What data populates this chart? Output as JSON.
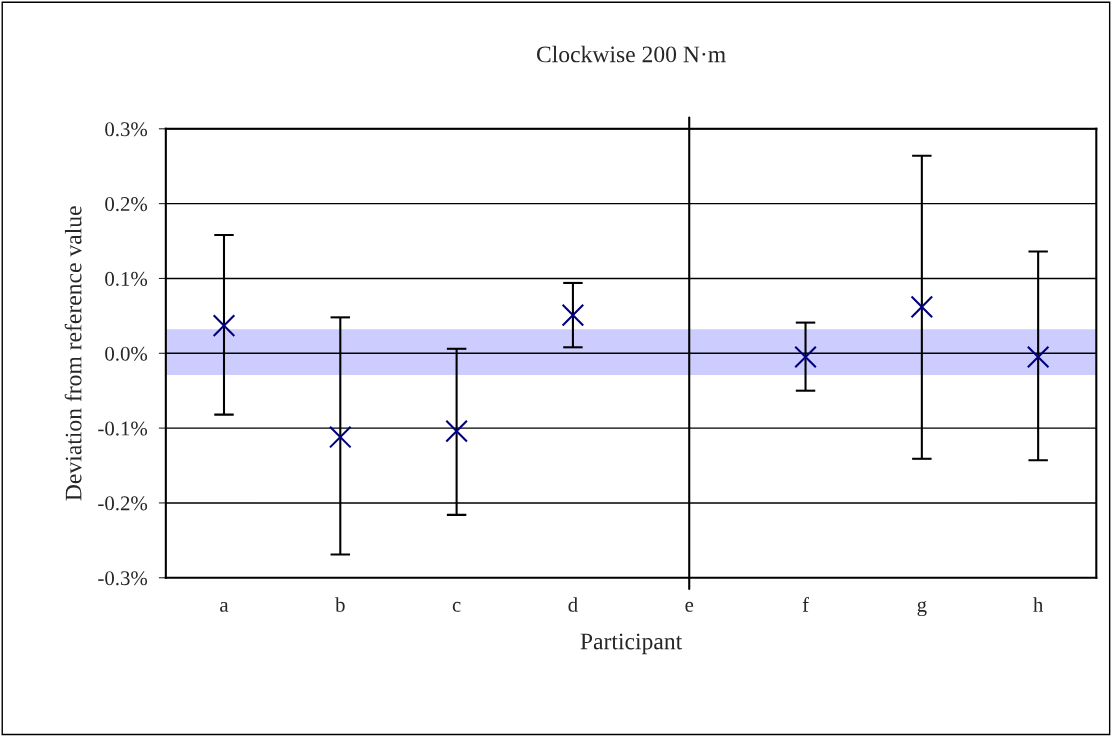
{
  "chart_data": {
    "type": "scatter",
    "title": "Clockwise 200 N·m",
    "xlabel": "Participant",
    "ylabel": "Deviation from reference value",
    "categories": [
      "a",
      "b",
      "c",
      "d",
      "e",
      "f",
      "g",
      "h"
    ],
    "series": [
      {
        "color": "#000080",
        "values": [
          0.037,
          -0.112,
          -0.104,
          0.051,
          null,
          -0.005,
          0.062,
          -0.005
        ],
        "errors": [
          [
            -0.082,
            0.158
          ],
          [
            -0.269,
            0.048
          ],
          [
            -0.216,
            0.006
          ],
          [
            0.008,
            0.094
          ],
          null,
          [
            -0.05,
            0.041
          ],
          [
            -0.141,
            0.264
          ],
          [
            -0.143,
            0.136
          ]
        ]
      }
    ],
    "marker": "cross",
    "ylim": [
      -0.3,
      0.3
    ],
    "yticks": [
      {
        "value": -0.3,
        "label": "-0.3%"
      },
      {
        "value": -0.2,
        "label": "-0.2%"
      },
      {
        "value": -0.1,
        "label": "-0.1%"
      },
      {
        "value": 0,
        "label": "0.0%"
      },
      {
        "value": 0.1,
        "label": "0.1%"
      },
      {
        "value": 0.2,
        "label": "0.2%"
      },
      {
        "value": 0.3,
        "label": "0.3%"
      }
    ],
    "grid": "y",
    "bands": [
      {
        "axis": "y",
        "from": -0.029,
        "to": 0.032,
        "color": "#ccccff"
      }
    ],
    "ref_lines": [
      {
        "axis": "x",
        "value": "e",
        "color": "#000000"
      }
    ]
  }
}
